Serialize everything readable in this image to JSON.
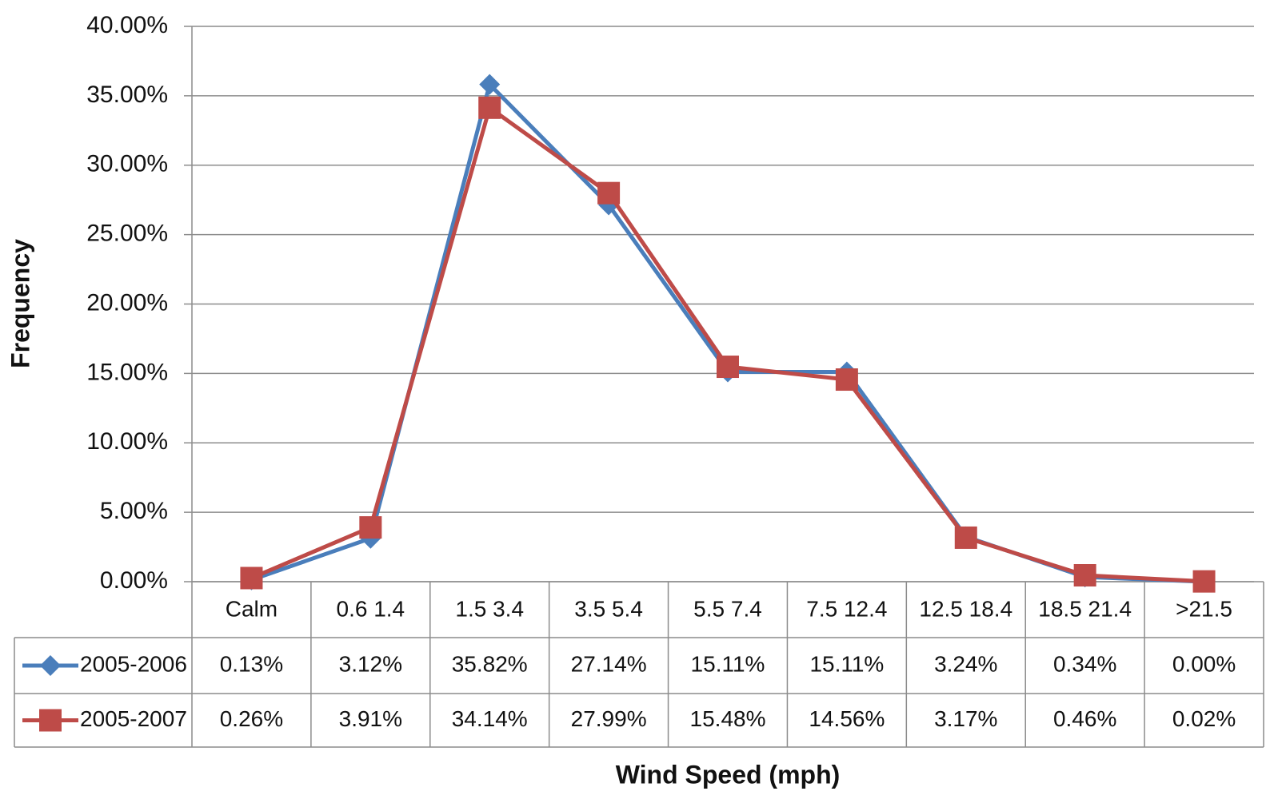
{
  "chart_data": {
    "type": "line",
    "x_label": "Wind Speed (mph)",
    "y_label": "Frequency",
    "categories": [
      "Calm",
      "0.6 1.4",
      "1.5 3.4",
      "3.5 5.4",
      "5.5 7.4",
      "7.5 12.4",
      "12.5 18.4",
      "18.5 21.4",
      ">21.5"
    ],
    "series": [
      {
        "name": "2005-2006",
        "color": "#4a7ebb",
        "marker": "diamond",
        "values": [
          0.13,
          3.12,
          35.82,
          27.14,
          15.11,
          15.11,
          3.24,
          0.34,
          0.0
        ],
        "value_labels": [
          "0.13%",
          "3.12%",
          "35.82%",
          "27.14%",
          "15.11%",
          "15.11%",
          "3.24%",
          "0.34%",
          "0.00%"
        ]
      },
      {
        "name": "2005-2007",
        "color": "#be4b48",
        "marker": "square",
        "values": [
          0.26,
          3.91,
          34.14,
          27.99,
          15.48,
          14.56,
          3.17,
          0.46,
          0.02
        ],
        "value_labels": [
          "0.26%",
          "3.91%",
          "34.14%",
          "27.99%",
          "15.48%",
          "14.56%",
          "3.17%",
          "0.46%",
          "0.02%"
        ]
      }
    ],
    "ylim": [
      0,
      40
    ],
    "yticks": [
      {
        "value": 0,
        "label": "0.00%"
      },
      {
        "value": 5,
        "label": "5.00%"
      },
      {
        "value": 10,
        "label": "10.00%"
      },
      {
        "value": 15,
        "label": "15.00%"
      },
      {
        "value": 20,
        "label": "20.00%"
      },
      {
        "value": 25,
        "label": "25.00%"
      },
      {
        "value": 30,
        "label": "30.00%"
      },
      {
        "value": 35,
        "label": "35.00%"
      },
      {
        "value": 40,
        "label": "40.00%"
      }
    ],
    "grid": true
  }
}
